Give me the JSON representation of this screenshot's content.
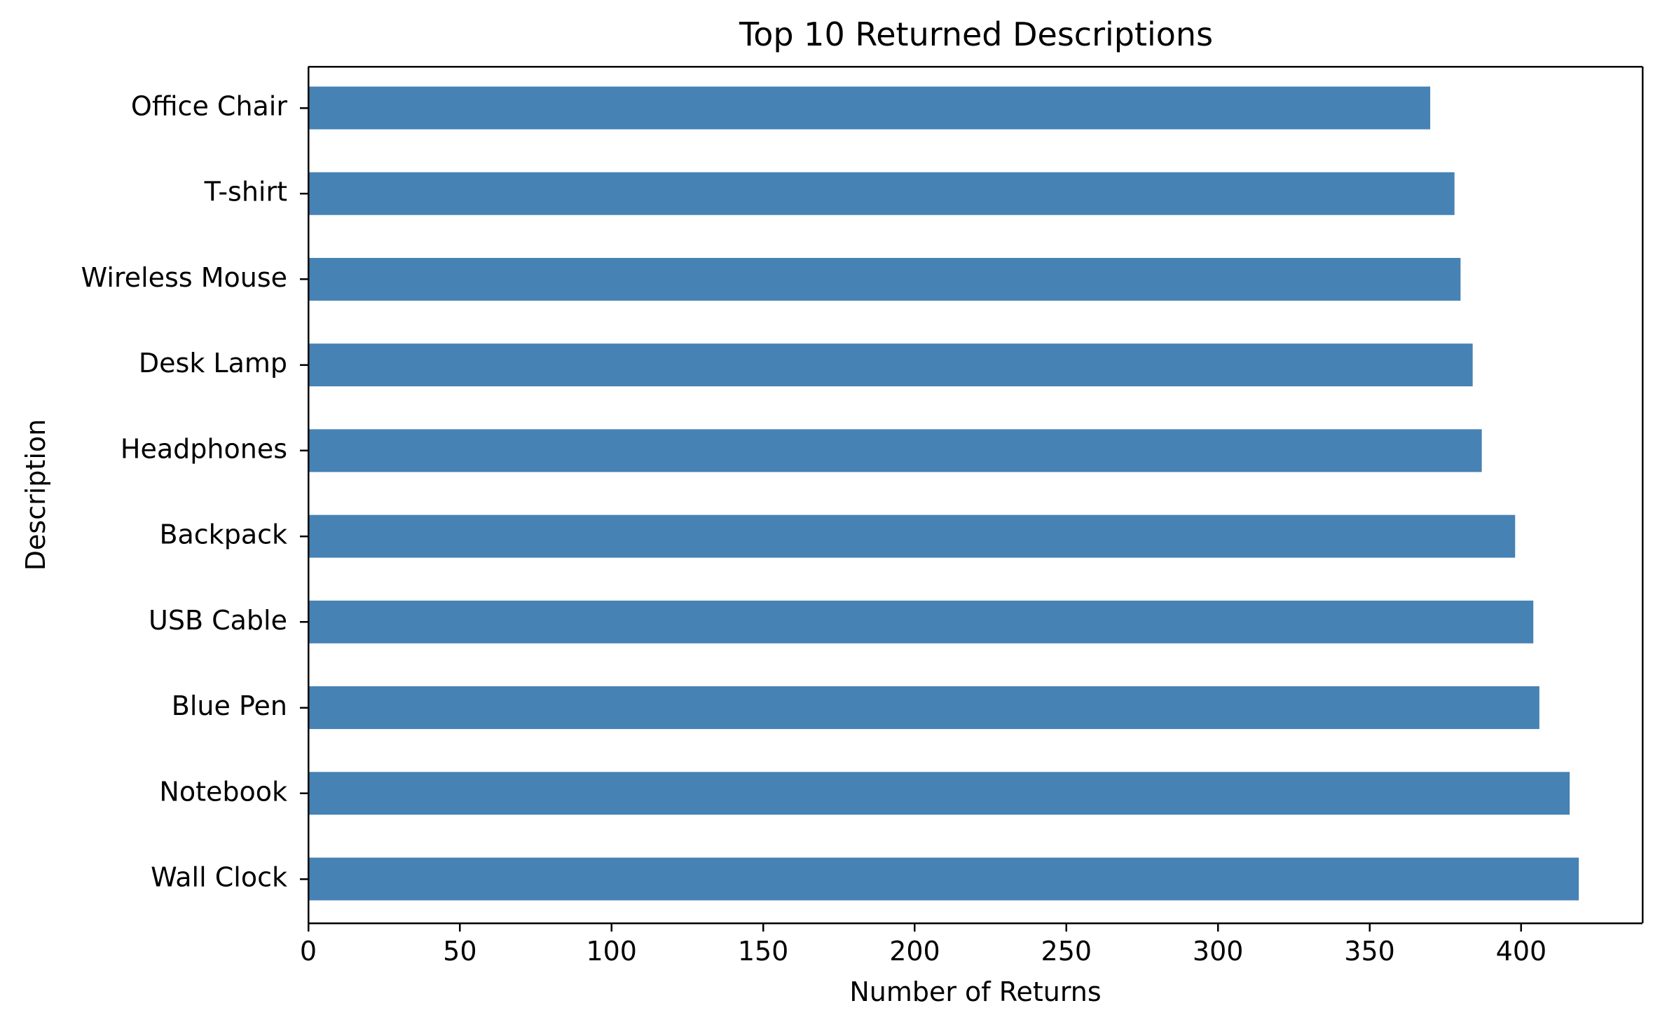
{
  "chart_data": {
    "type": "bar",
    "orientation": "horizontal",
    "title": "Top 10 Returned Descriptions",
    "xlabel": "Number of Returns",
    "ylabel": "Description",
    "categories": [
      "Office Chair",
      "T-shirt",
      "Wireless Mouse",
      "Desk Lamp",
      "Headphones",
      "Backpack",
      "USB Cable",
      "Blue Pen",
      "Notebook",
      "Wall Clock"
    ],
    "values": [
      370,
      378,
      380,
      384,
      387,
      398,
      404,
      406,
      416,
      419
    ],
    "xlim": [
      0,
      440
    ],
    "xticks": [
      0,
      50,
      100,
      150,
      200,
      250,
      300,
      350,
      400
    ],
    "grid": false,
    "legend": "none",
    "bar_color": "#4682b4"
  }
}
